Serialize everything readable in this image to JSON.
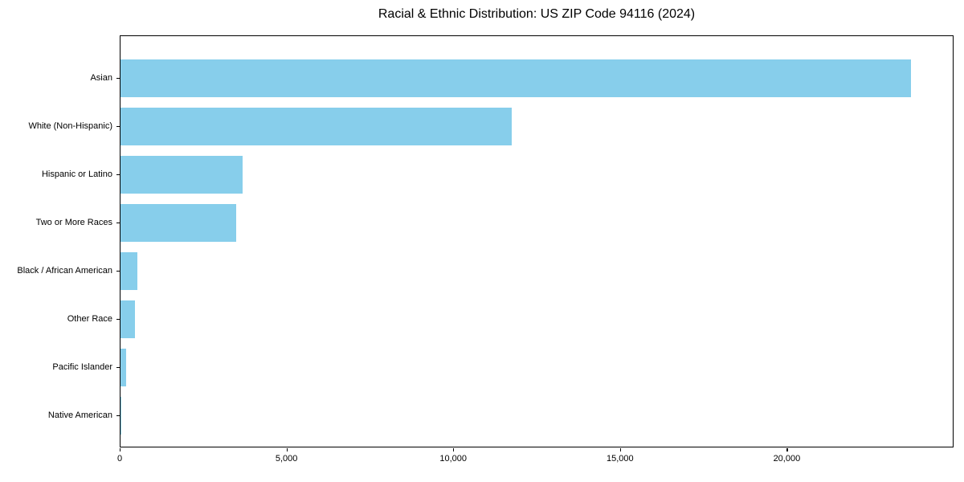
{
  "chart_data": {
    "type": "bar",
    "orientation": "horizontal",
    "title": "Racial & Ethnic Distribution: US ZIP Code 94116 (2024)",
    "categories": [
      "Asian",
      "White (Non-Hispanic)",
      "Hispanic or Latino",
      "Two or More Races",
      "Black / African American",
      "Other Race",
      "Pacific Islander",
      "Native American"
    ],
    "values": [
      23750,
      11750,
      3680,
      3480,
      500,
      425,
      160,
      25
    ],
    "xlabel": "",
    "ylabel": "",
    "xlim": [
      0,
      25000
    ],
    "xticks": [
      {
        "value": 0,
        "label": "0"
      },
      {
        "value": 5000,
        "label": "5,000"
      },
      {
        "value": 10000,
        "label": "10,000"
      },
      {
        "value": 15000,
        "label": "15,000"
      },
      {
        "value": 20000,
        "label": "20,000"
      }
    ],
    "grid": false,
    "legend": "none",
    "colors": {
      "bar": "#87CEEB",
      "axis": "#000000",
      "text": "#000000",
      "background": "#FFFFFF"
    }
  }
}
